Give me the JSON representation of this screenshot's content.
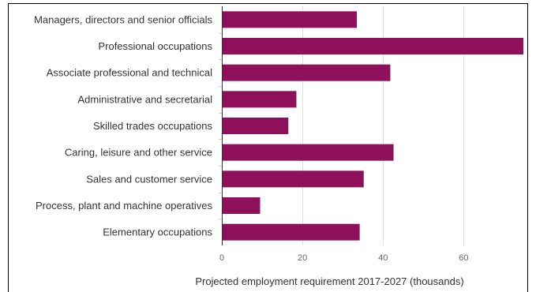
{
  "chart_data": {
    "type": "bar",
    "orientation": "horizontal",
    "categories": [
      "Managers, directors and senior officials",
      "Professional occupations",
      "Associate professional and technical",
      "Administrative and secretarial",
      "Skilled trades occupations",
      "Caring, leisure and other service",
      "Sales and customer service",
      "Process, plant and machine operatives",
      "Elementary occupations"
    ],
    "values": [
      33.5,
      74.8,
      41.8,
      18.5,
      16.5,
      42.6,
      35.2,
      9.5,
      34.2
    ],
    "xlabel": "Projected employment requirement 2017-2027 (thousands)",
    "ylabel": "",
    "xlim": [
      0,
      75
    ],
    "xticks": [
      0,
      20,
      40,
      60
    ],
    "xtick_labels": [
      "0",
      "20",
      "40",
      "60"
    ],
    "grid": "vertical",
    "bar_color": "#8e0f5a",
    "grid_color": "#e0e0e0",
    "frame_color": "#000000"
  }
}
